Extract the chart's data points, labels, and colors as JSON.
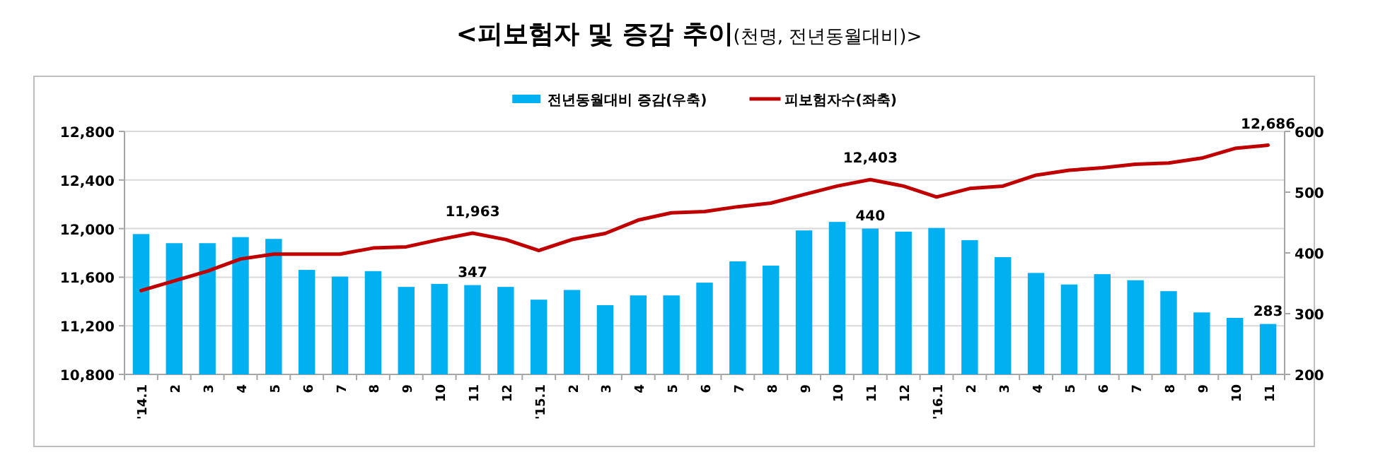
{
  "chart_data": {
    "type": "bar",
    "title": "<피보험자 및 증감 추이(천명, 전년동월대비)>",
    "categories": [
      "'14.1",
      "2",
      "3",
      "4",
      "5",
      "6",
      "7",
      "8",
      "9",
      "10",
      "11",
      "12",
      "'15.1",
      "2",
      "3",
      "4",
      "5",
      "6",
      "7",
      "8",
      "9",
      "10",
      "11",
      "12",
      "'16.1",
      "2",
      "3",
      "4",
      "5",
      "6",
      "7",
      "8",
      "9",
      "10",
      "11"
    ],
    "series": [
      {
        "name": "전년동월대비 증감(우축)",
        "axis": "y2",
        "color": "#00b0f0",
        "values": [
          431,
          416,
          416,
          426,
          423,
          372,
          361,
          370,
          344,
          349,
          347,
          344,
          323,
          339,
          314,
          330,
          330,
          351,
          386,
          379,
          437,
          451,
          440,
          435,
          441,
          421,
          393,
          367,
          348,
          365,
          355,
          337,
          302,
          293,
          283
        ],
        "value_labels": [
          null,
          null,
          null,
          null,
          null,
          null,
          null,
          null,
          null,
          null,
          "347",
          null,
          null,
          null,
          null,
          null,
          null,
          null,
          null,
          null,
          null,
          null,
          "440",
          null,
          null,
          null,
          null,
          null,
          null,
          null,
          null,
          null,
          null,
          null,
          "283"
        ]
      },
      {
        "name": "피보험자수(좌축)",
        "type": "line",
        "color": "#c00000",
        "values": [
          11490,
          11570,
          11650,
          11750,
          11790,
          11790,
          11790,
          11840,
          11850,
          11910,
          11963,
          11910,
          11820,
          11910,
          11960,
          12070,
          12130,
          12140,
          12180,
          12210,
          12280,
          12350,
          12403,
          12350,
          12260,
          12330,
          12350,
          12440,
          12480,
          12500,
          12530,
          12540,
          12580,
          12660,
          12686
        ],
        "value_labels": [
          null,
          null,
          null,
          null,
          null,
          null,
          null,
          null,
          null,
          null,
          "11,963",
          null,
          null,
          null,
          null,
          null,
          null,
          null,
          null,
          null,
          null,
          null,
          "12,403",
          null,
          null,
          null,
          null,
          null,
          null,
          null,
          null,
          null,
          null,
          null,
          "12,686"
        ]
      }
    ],
    "ylim": [
      10800,
      12800
    ],
    "yticks": [
      {
        "value": 10800,
        "label": "10,800"
      },
      {
        "value": 11200,
        "label": "11,200"
      },
      {
        "value": 11600,
        "label": "11,600"
      },
      {
        "value": 12000,
        "label": "12,000"
      },
      {
        "value": 12400,
        "label": "12,400"
      },
      {
        "value": 12800,
        "label": "12,800"
      }
    ],
    "y2lim": [
      200,
      600
    ],
    "y2ticks": [
      200,
      300,
      400,
      500,
      600
    ],
    "grid": "y",
    "legend": "top"
  }
}
